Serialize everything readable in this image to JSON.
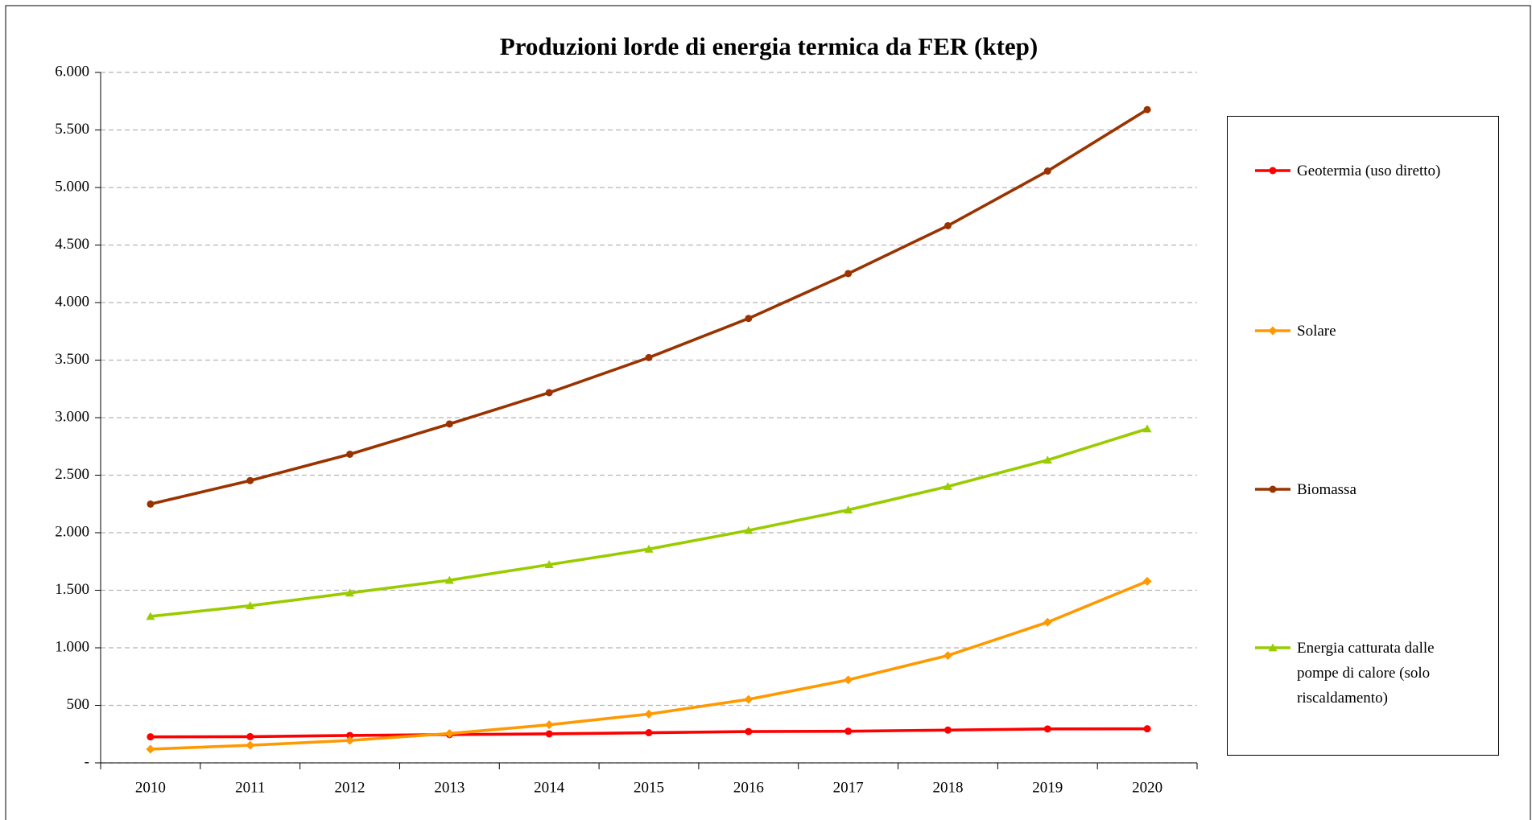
{
  "chart_data": {
    "type": "line",
    "title": "Produzioni lorde di energia termica da FER (ktep)",
    "categories": [
      "2010",
      "2011",
      "2012",
      "2013",
      "2014",
      "2015",
      "2016",
      "2017",
      "2018",
      "2019",
      "2020"
    ],
    "series": [
      {
        "name": "Geotermia (uso diretto)",
        "color": "#ff0000",
        "marker": "circle",
        "values": [
          226,
          228,
          238,
          246,
          252,
          262,
          272,
          275,
          285,
          295,
          296
        ]
      },
      {
        "name": "Solare",
        "color": "#ff9900",
        "marker": "diamond",
        "values": [
          119,
          153,
          195,
          255,
          331,
          424,
          552,
          721,
          933,
          1222,
          1578
        ]
      },
      {
        "name": "Biomassa",
        "color": "#993300",
        "marker": "circle",
        "values": [
          2249,
          2453,
          2682,
          2945,
          3217,
          3522,
          3862,
          4252,
          4668,
          5143,
          5677
        ]
      },
      {
        "name": "Energia catturata dalle pompe di calore (solo riscaldamento)",
        "color": "#99cc00",
        "marker": "triangle",
        "values": [
          1273,
          1366,
          1477,
          1587,
          1723,
          1858,
          2020,
          2198,
          2402,
          2631,
          2903
        ]
      }
    ],
    "ylim": [
      0,
      6000
    ],
    "yticks": [
      {
        "value": 0,
        "label": "-"
      },
      500,
      {
        "value": 1000,
        "label": "1.000"
      },
      {
        "value": 1500,
        "label": "1.500"
      },
      {
        "value": 2000,
        "label": "2.000"
      },
      {
        "value": 2500,
        "label": "2.500"
      },
      {
        "value": 3000,
        "label": "3.000"
      },
      {
        "value": 3500,
        "label": "3.500"
      },
      {
        "value": 4000,
        "label": "4.000"
      },
      {
        "value": 4500,
        "label": "4.500"
      },
      {
        "value": 5000,
        "label": "5.000"
      },
      {
        "value": 5500,
        "label": "5.500"
      },
      {
        "value": 6000,
        "label": "6.000"
      }
    ],
    "grid": true,
    "legend": "right"
  }
}
